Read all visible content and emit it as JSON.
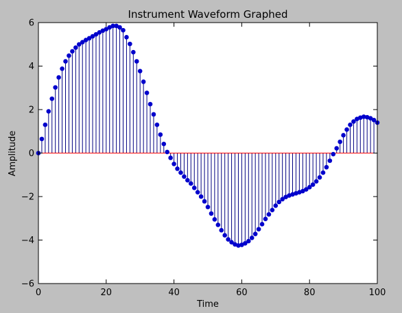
{
  "chart_data": {
    "type": "stem",
    "title": "Instrument Waveform Graphed",
    "xlabel": "Time",
    "ylabel": "Amplitude",
    "xlim": [
      0,
      100
    ],
    "ylim": [
      -6,
      6
    ],
    "x_ticks": [
      "0",
      "20",
      "40",
      "60",
      "80",
      "100"
    ],
    "y_ticks": [
      "6",
      "4",
      "2",
      "0",
      "−2",
      "−4",
      "−6"
    ],
    "grid": false,
    "legend": "none",
    "baseline": 0,
    "colors": {
      "marker": "#0000cc",
      "stem": "#000080",
      "baseline": "#ff0000"
    },
    "x": [
      0,
      1,
      2,
      3,
      4,
      5,
      6,
      7,
      8,
      9,
      10,
      11,
      12,
      13,
      14,
      15,
      16,
      17,
      18,
      19,
      20,
      21,
      22,
      23,
      24,
      25,
      26,
      27,
      28,
      29,
      30,
      31,
      32,
      33,
      34,
      35,
      36,
      37,
      38,
      39,
      40,
      41,
      42,
      43,
      44,
      45,
      46,
      47,
      48,
      49,
      50,
      51,
      52,
      53,
      54,
      55,
      56,
      57,
      58,
      59,
      60,
      61,
      62,
      63,
      64,
      65,
      66,
      67,
      68,
      69,
      70,
      71,
      72,
      73,
      74,
      75,
      76,
      77,
      78,
      79,
      80,
      81,
      82,
      83,
      84,
      85,
      86,
      87,
      88,
      89,
      90,
      91,
      92,
      93,
      94,
      95,
      96,
      97,
      98,
      99,
      100
    ],
    "values": [
      0.0,
      0.65,
      1.3,
      1.92,
      2.5,
      3.02,
      3.48,
      3.88,
      4.22,
      4.48,
      4.68,
      4.85,
      5.0,
      5.1,
      5.2,
      5.28,
      5.37,
      5.46,
      5.55,
      5.63,
      5.7,
      5.78,
      5.85,
      5.85,
      5.78,
      5.65,
      5.33,
      5.02,
      4.64,
      4.22,
      3.77,
      3.28,
      2.77,
      2.25,
      1.78,
      1.3,
      0.85,
      0.42,
      0.05,
      -0.22,
      -0.5,
      -0.72,
      -0.9,
      -1.08,
      -1.25,
      -1.4,
      -1.6,
      -1.8,
      -2.0,
      -2.22,
      -2.48,
      -2.78,
      -3.05,
      -3.3,
      -3.55,
      -3.78,
      -3.97,
      -4.1,
      -4.2,
      -4.25,
      -4.22,
      -4.15,
      -4.05,
      -3.9,
      -3.72,
      -3.5,
      -3.27,
      -3.03,
      -2.82,
      -2.62,
      -2.42,
      -2.25,
      -2.12,
      -2.02,
      -1.95,
      -1.9,
      -1.85,
      -1.8,
      -1.75,
      -1.67,
      -1.57,
      -1.45,
      -1.3,
      -1.12,
      -0.9,
      -0.65,
      -0.35,
      -0.05,
      0.22,
      0.52,
      0.82,
      1.08,
      1.3,
      1.45,
      1.57,
      1.63,
      1.67,
      1.65,
      1.6,
      1.52,
      1.4
    ]
  }
}
